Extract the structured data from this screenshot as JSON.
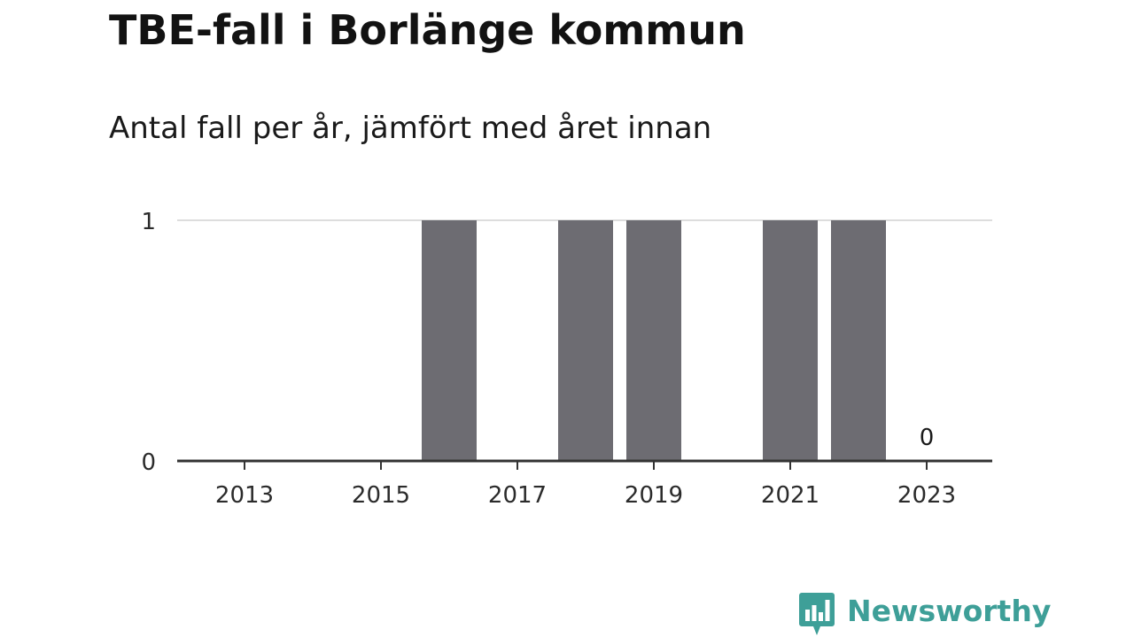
{
  "title": "TBE-fall i Borlänge kommun",
  "subtitle": "Antal fall per år, jämfört med året innan",
  "brand": {
    "name": "Newsworthy",
    "icon": "bar-chart-speech-bubble-icon",
    "color": "#3e9f98"
  },
  "colors": {
    "bar": "#6d6c72",
    "grid": "#dddddd",
    "axis": "#333333"
  },
  "chart_data": {
    "type": "bar",
    "x": [
      2013,
      2014,
      2015,
      2016,
      2017,
      2018,
      2019,
      2020,
      2021,
      2022,
      2023
    ],
    "values": [
      0,
      0,
      0,
      1,
      0,
      1,
      1,
      0,
      1,
      1,
      0
    ],
    "xticks": [
      "2013",
      "2015",
      "2017",
      "2019",
      "2021",
      "2023"
    ],
    "yticks": [
      "0",
      "1"
    ],
    "ylim": [
      0,
      1
    ],
    "annotations": [
      {
        "x": 2023,
        "label": "0"
      }
    ],
    "grid": true,
    "legend": "none"
  }
}
